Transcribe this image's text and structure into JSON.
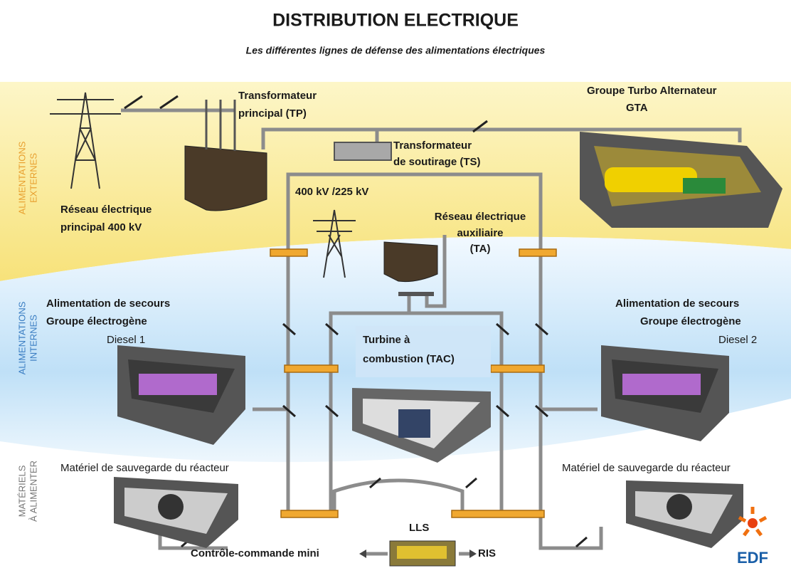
{
  "header": {
    "title": "DISTRIBUTION ELECTRIQUE",
    "subtitle": "Les différentes lignes de défense des alimentations électriques"
  },
  "zones": [
    {
      "lines": [
        "ALIMENTATIONS",
        "EXTERNES"
      ]
    },
    {
      "lines": [
        "ALIMENTATIONS",
        "INTERNES"
      ]
    },
    {
      "lines": [
        "MATÉRIELS",
        "À ALIMENTER"
      ]
    }
  ],
  "labels": [
    {
      "lines": [
        "Transformateur",
        "principal (TP)"
      ]
    },
    {
      "lines": [
        "Groupe Turbo Alternateur",
        "GTA"
      ]
    },
    {
      "lines": [
        "Transformateur",
        "de soutirage (TS)"
      ]
    },
    {
      "lines": [
        "Réseau électrique",
        "principal 400 kV"
      ]
    },
    {
      "lines": [
        "400 kV /225 kV"
      ]
    },
    {
      "lines": [
        "Réseau électrique",
        "auxiliaire",
        "(TA)"
      ]
    },
    {
      "lines": [
        "Alimentation de secours",
        "Groupe  électrogène",
        "Diesel 1"
      ]
    },
    {
      "lines": [
        "Alimentation de secours",
        "Groupe  électrogène",
        "Diesel 2"
      ]
    },
    {
      "lines": [
        "Turbine à",
        "combustion (TAC)"
      ]
    },
    {
      "lines": [
        "Matériel de sauvegarde du réacteur"
      ]
    },
    {
      "lines": [
        "Matériel de sauvegarde du réacteur"
      ]
    },
    {
      "lines": [
        "LLS"
      ]
    },
    {
      "lines": [
        "Contrôle-commande mini"
      ]
    },
    {
      "lines": [
        "RIS"
      ]
    }
  ],
  "logo": "EDF"
}
